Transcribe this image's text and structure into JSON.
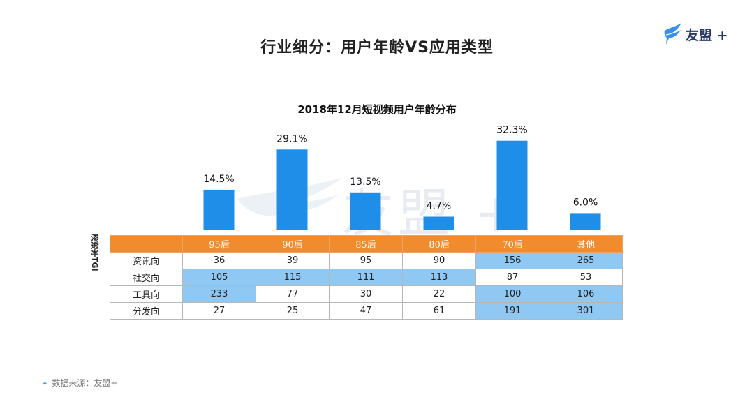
{
  "page_title": "行业细分：用户年龄VS应用类型",
  "logo": {
    "text": "友盟",
    "plus": "+"
  },
  "watermark": "友盟 +",
  "tgi_label": "渗透率TGI",
  "source": "数据来源：友盟+",
  "colors": {
    "bar": "#1f8ee8",
    "header": "#f08c2e",
    "highlight": "#90c8f4",
    "logo": "#2a3a66"
  },
  "chart_data": {
    "type": "bar",
    "title": "2018年12月短视频用户年龄分布",
    "categories": [
      "95后",
      "90后",
      "85后",
      "80后",
      "70后",
      "其他"
    ],
    "values": [
      14.5,
      29.1,
      13.5,
      4.7,
      32.3,
      6.0
    ],
    "data_labels": [
      "14.5%",
      "29.1%",
      "13.5%",
      "4.7%",
      "32.3%",
      "6.0%"
    ],
    "unit": "%",
    "xlabel": "",
    "ylabel": "",
    "ylim": [
      0,
      35
    ],
    "grid": false,
    "legend": "none"
  },
  "table": {
    "columns": [
      "95后",
      "90后",
      "85后",
      "80后",
      "70后",
      "其他"
    ],
    "rows": [
      {
        "label": "资讯向",
        "values": [
          "36",
          "39",
          "95",
          "90",
          "156",
          "265"
        ],
        "highlight": [
          false,
          false,
          false,
          false,
          true,
          true
        ]
      },
      {
        "label": "社交向",
        "values": [
          "105",
          "115",
          "111",
          "113",
          "87",
          "53"
        ],
        "highlight": [
          true,
          true,
          true,
          true,
          false,
          false
        ]
      },
      {
        "label": "工具向",
        "values": [
          "233",
          "77",
          "30",
          "22",
          "100",
          "106"
        ],
        "highlight": [
          true,
          false,
          false,
          false,
          true,
          true
        ]
      },
      {
        "label": "分发向",
        "values": [
          "27",
          "25",
          "47",
          "61",
          "191",
          "301"
        ],
        "highlight": [
          false,
          false,
          false,
          false,
          true,
          true
        ]
      }
    ]
  }
}
